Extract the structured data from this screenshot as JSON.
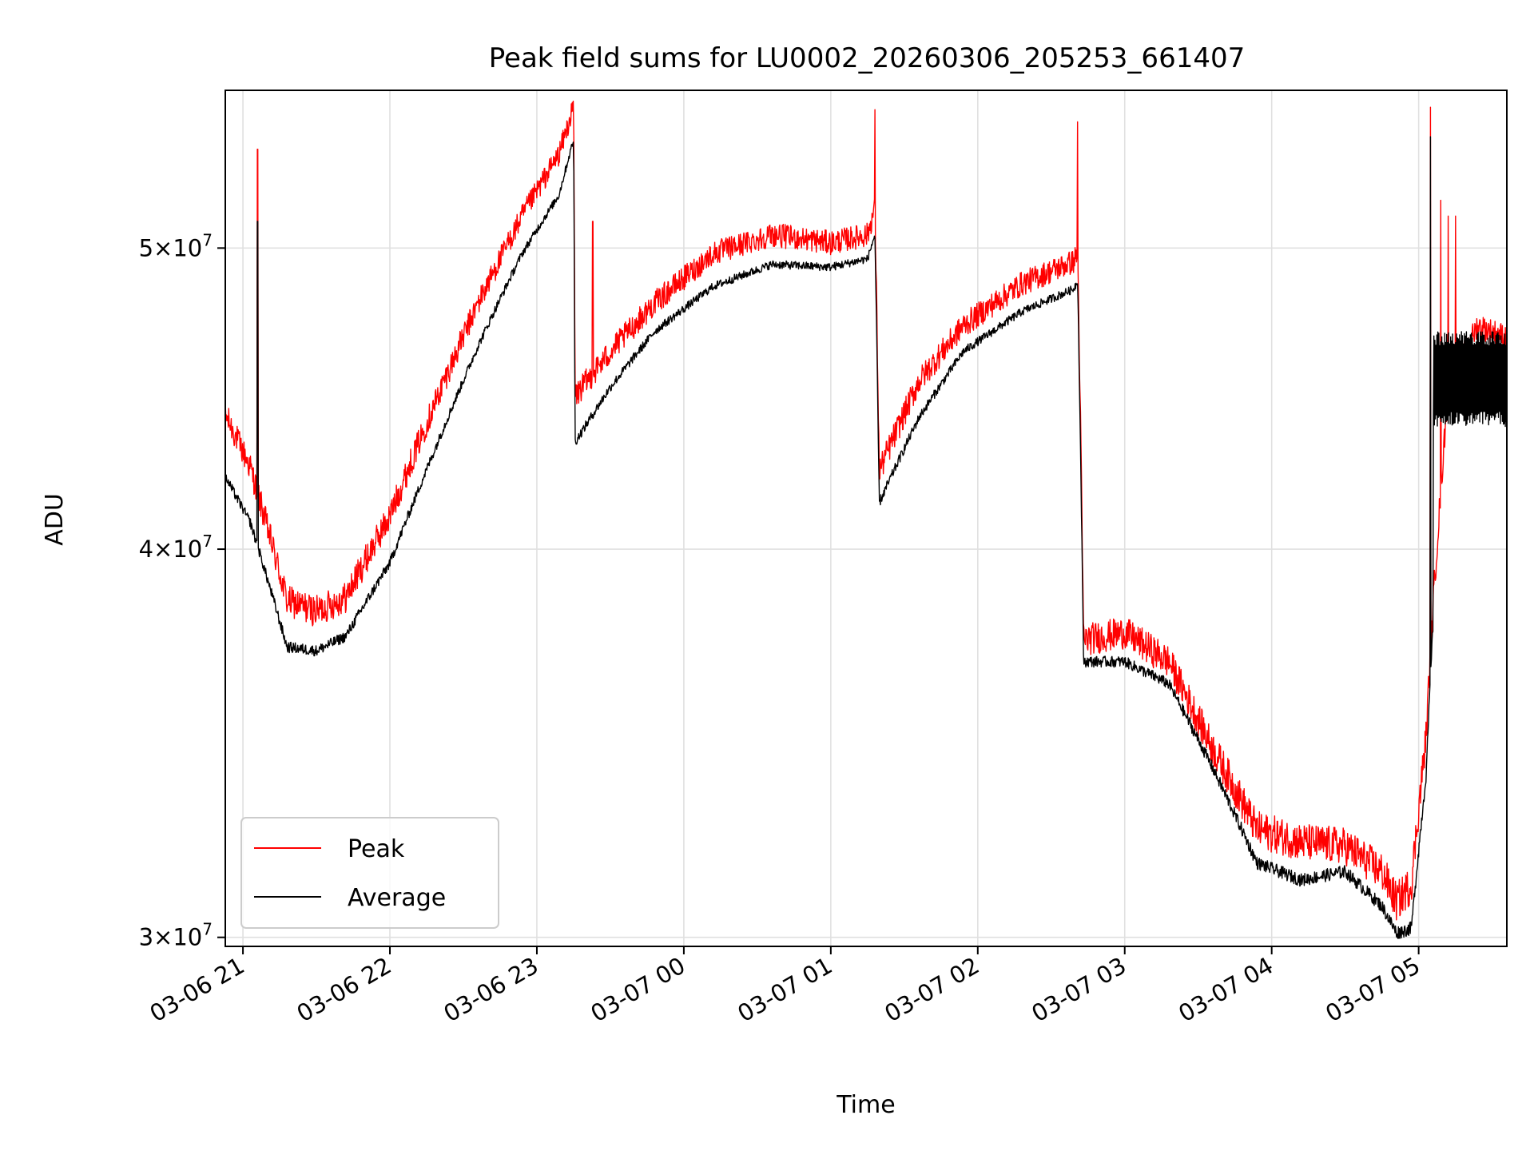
{
  "chart_data": {
    "type": "line",
    "title": "Peak field sums for LU0002_20260306_205253_661407",
    "xlabel": "Time",
    "ylabel": "ADU",
    "yscale": "log",
    "ylim": [
      29800000,
      56200000
    ],
    "xlim": [
      -0.12,
      8.6
    ],
    "x_unit": "hours since 03-06 21:00",
    "x_tick_values": [
      0,
      1,
      2,
      3,
      4,
      5,
      6,
      7,
      8
    ],
    "x_tick_labels": [
      "03-06 21",
      "03-06 22",
      "03-06 23",
      "03-07 00",
      "03-07 01",
      "03-07 02",
      "03-07 03",
      "03-07 04",
      "03-07 05"
    ],
    "y_ticks": [
      {
        "value": 30000000,
        "mantissa": "3",
        "exponent": "7"
      },
      {
        "value": 40000000,
        "mantissa": "4",
        "exponent": "7"
      },
      {
        "value": 50000000,
        "mantissa": "5",
        "exponent": "7"
      }
    ],
    "grid": true,
    "legend": {
      "position": "lower-left",
      "entries": [
        "Peak",
        "Average"
      ]
    },
    "colors": {
      "peak": "#ff0000",
      "average": "#000000"
    },
    "series": [
      {
        "name": "Peak",
        "color": "#ff0000",
        "noise": 450000,
        "x": [
          -0.12,
          0.05,
          0.3,
          0.5,
          0.7,
          1.0,
          1.3,
          1.6,
          1.9,
          2.15,
          2.25,
          2.26,
          2.5,
          2.8,
          3.2,
          3.6,
          4.0,
          4.25,
          4.3,
          4.33,
          4.6,
          4.9,
          5.3,
          5.65,
          5.68,
          5.72,
          6.0,
          6.3,
          6.6,
          6.9,
          7.2,
          7.5,
          7.75,
          7.85,
          7.95,
          8.0,
          8.05,
          8.1,
          8.2,
          8.4,
          8.6
        ],
        "y": [
          44200000,
          42500000,
          38500000,
          38200000,
          38600000,
          41000000,
          44500000,
          48000000,
          51200000,
          53600000,
          55500000,
          44800000,
          46300000,
          48000000,
          49800000,
          50500000,
          50200000,
          50500000,
          51500000,
          42400000,
          45300000,
          47200000,
          48700000,
          49500000,
          49800000,
          37400000,
          37600000,
          36800000,
          34500000,
          32500000,
          32200000,
          32100000,
          31500000,
          30800000,
          31200000,
          33000000,
          34800000,
          38500000,
          45000000,
          47200000,
          46800000
        ],
        "spikes": [
          {
            "x": 0.1,
            "y": 53800000
          },
          {
            "x": 2.38,
            "y": 51000000
          },
          {
            "x": 4.3,
            "y": 55400000
          },
          {
            "x": 5.68,
            "y": 54900000
          },
          {
            "x": 8.08,
            "y": 55500000
          },
          {
            "x": 8.15,
            "y": 51800000
          },
          {
            "x": 8.2,
            "y": 51200000
          },
          {
            "x": 8.25,
            "y": 51200000
          }
        ]
      },
      {
        "name": "Average",
        "color": "#000000",
        "noise": 150000,
        "x": [
          -0.12,
          0.05,
          0.3,
          0.5,
          0.7,
          1.0,
          1.3,
          1.6,
          1.9,
          2.15,
          2.25,
          2.26,
          2.5,
          2.8,
          3.2,
          3.6,
          4.0,
          4.25,
          4.3,
          4.33,
          4.6,
          4.9,
          5.3,
          5.65,
          5.68,
          5.72,
          6.0,
          6.3,
          6.6,
          6.9,
          7.2,
          7.5,
          7.75,
          7.85,
          7.95,
          8.0,
          8.05,
          8.1,
          8.2,
          8.4,
          8.6
        ],
        "y": [
          42200000,
          40800000,
          37200000,
          37100000,
          37500000,
          39600000,
          43000000,
          46500000,
          49800000,
          52000000,
          54200000,
          43300000,
          45100000,
          47000000,
          48600000,
          49400000,
          49300000,
          49600000,
          50500000,
          41400000,
          44100000,
          46300000,
          47700000,
          48500000,
          48800000,
          36800000,
          36800000,
          36200000,
          34000000,
          31700000,
          31300000,
          31500000,
          30700000,
          30100000,
          30200000,
          32000000,
          33800000,
          38000000,
          44000000,
          45300000,
          45000000
        ],
        "spikes": [
          {
            "x": 0.1,
            "y": 51000000
          },
          {
            "x": 8.08,
            "y": 54300000
          }
        ],
        "band": {
          "x_start": 8.1,
          "x_end": 8.6,
          "low": 43800000,
          "high": 47000000
        }
      }
    ]
  }
}
